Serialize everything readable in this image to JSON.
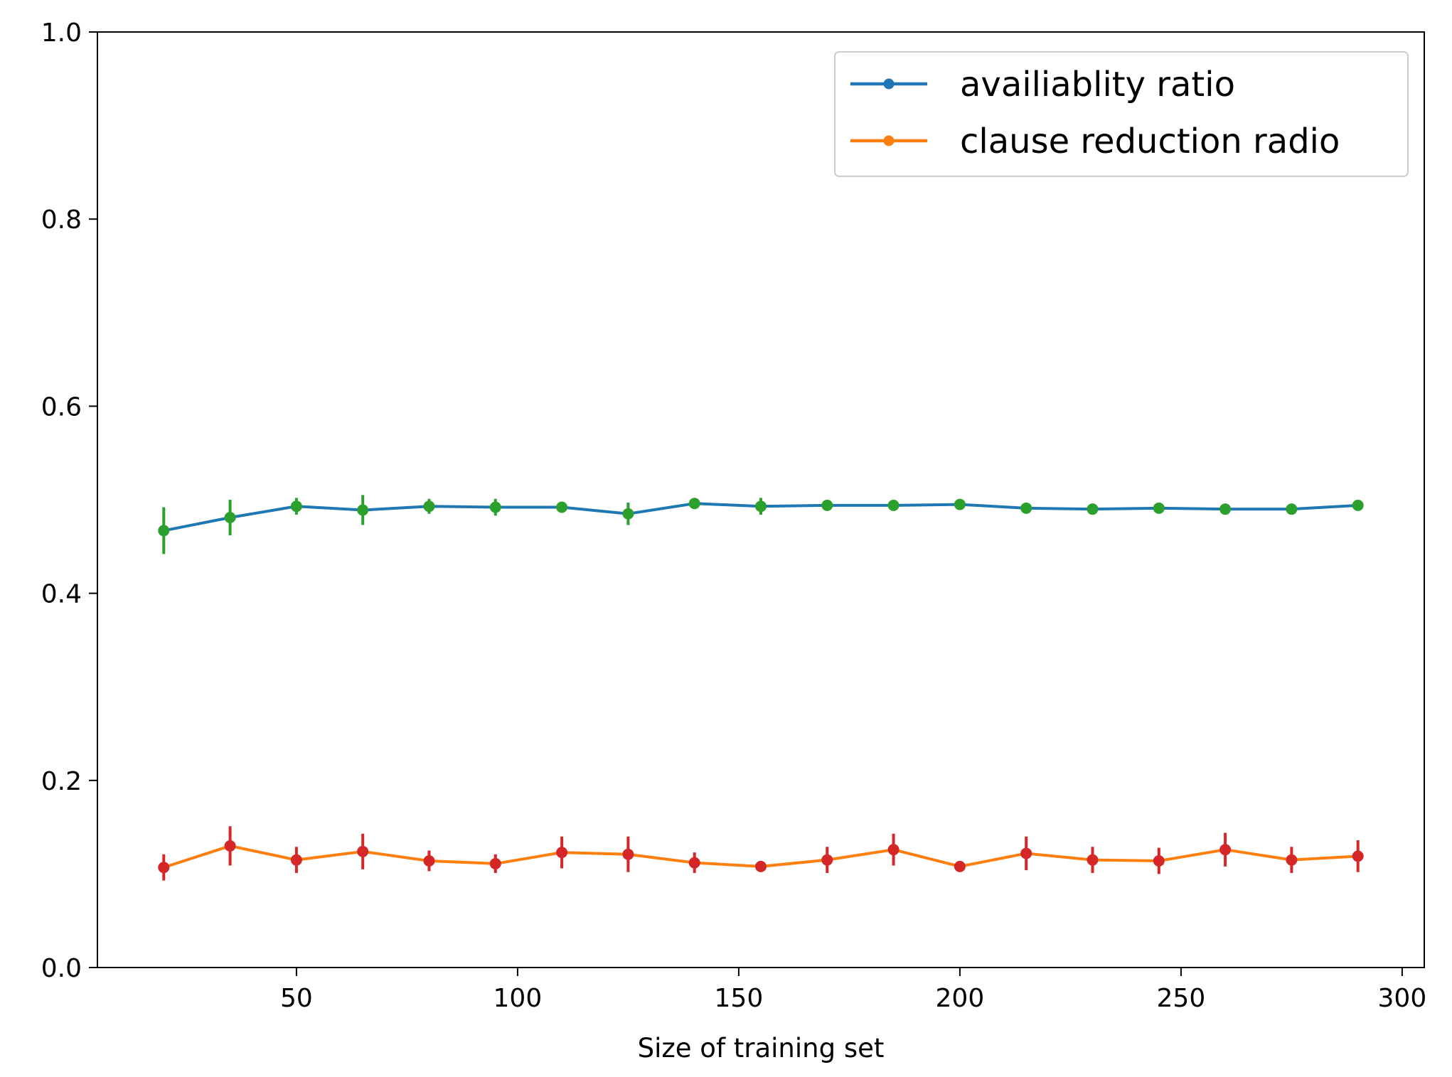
{
  "chart_data": {
    "type": "line",
    "title": "",
    "xlabel": "Size of training set",
    "ylabel": "",
    "xlim": [
      5,
      305
    ],
    "ylim": [
      0.0,
      1.0
    ],
    "x_ticks": [
      50,
      100,
      150,
      200,
      250,
      300
    ],
    "x_tick_labels": [
      "50",
      "100",
      "150",
      "200",
      "250",
      "300"
    ],
    "y_ticks": [
      0.0,
      0.2,
      0.4,
      0.6,
      0.8,
      1.0
    ],
    "y_tick_labels": [
      "0.0",
      "0.2",
      "0.4",
      "0.6",
      "0.8",
      "1.0"
    ],
    "grid": false,
    "legend_position": "top-right",
    "x": [
      20,
      35,
      50,
      65,
      80,
      95,
      110,
      125,
      140,
      155,
      170,
      185,
      200,
      215,
      230,
      245,
      260,
      275,
      290
    ],
    "series": [
      {
        "name": "availiablity ratio",
        "line_color": "#1f77b4",
        "errorbar_color": "#2ca02c",
        "values": [
          0.467,
          0.481,
          0.493,
          0.489,
          0.493,
          0.492,
          0.492,
          0.485,
          0.496,
          0.493,
          0.494,
          0.494,
          0.495,
          0.491,
          0.49,
          0.491,
          0.49,
          0.49,
          0.494
        ],
        "errors": [
          0.025,
          0.019,
          0.009,
          0.016,
          0.008,
          0.009,
          0.005,
          0.012,
          0.005,
          0.009,
          0.005,
          0.005,
          0.005,
          0.005,
          0.005,
          0.005,
          0.005,
          0.005,
          0.005
        ]
      },
      {
        "name": "clause reduction radio",
        "line_color": "#ff7f0e",
        "errorbar_color": "#d62728",
        "values": [
          0.107,
          0.13,
          0.115,
          0.124,
          0.114,
          0.111,
          0.123,
          0.121,
          0.112,
          0.108,
          0.115,
          0.126,
          0.108,
          0.122,
          0.115,
          0.114,
          0.126,
          0.115,
          0.119
        ],
        "errors": [
          0.014,
          0.021,
          0.014,
          0.019,
          0.011,
          0.01,
          0.017,
          0.019,
          0.011,
          0.005,
          0.014,
          0.017,
          0.005,
          0.018,
          0.014,
          0.014,
          0.018,
          0.014,
          0.017
        ]
      }
    ]
  }
}
